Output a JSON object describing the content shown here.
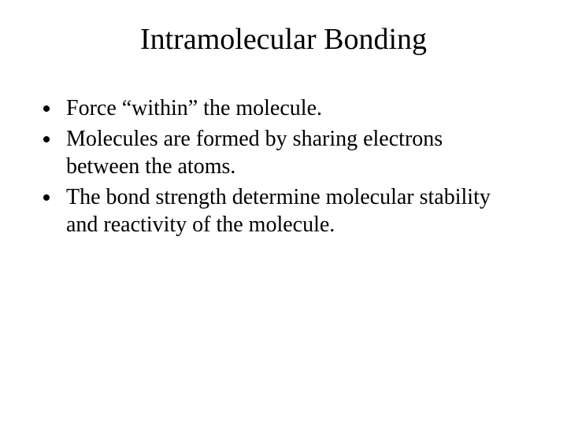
{
  "title": "Intramolecular Bonding",
  "bullets": [
    "Force “within” the molecule.",
    "Molecules are formed by sharing electrons between the atoms.",
    "The bond strength determine molecular stability and reactivity of the molecule."
  ],
  "colors": {
    "background": "#ffffff",
    "text": "#000000"
  },
  "typography": {
    "family": "Times New Roman",
    "title_fontsize": 38,
    "body_fontsize": 28
  }
}
